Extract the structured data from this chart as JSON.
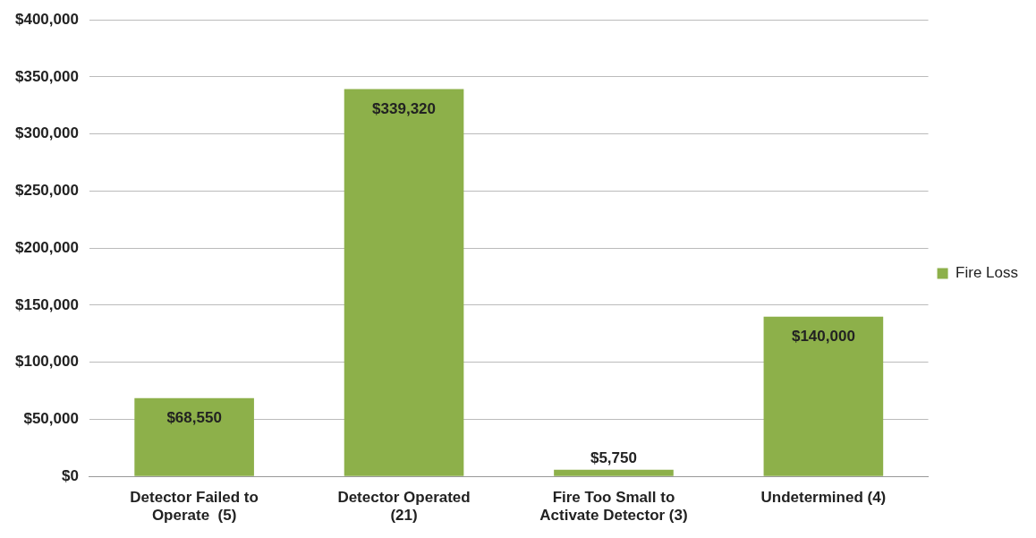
{
  "chart_data": {
    "type": "bar",
    "categories": [
      "Detector Failed to Operate  (5)",
      "Detector Operated (21)",
      "Fire Too Small to Activate Detector (3)",
      "Undetermined (4)"
    ],
    "series": [
      {
        "name": "Fire Loss",
        "color": "#8db04a",
        "values": [
          68550,
          339320,
          5750,
          140000
        ],
        "value_labels": [
          "$68,550",
          "$339,320",
          "$5,750",
          "$140,000"
        ]
      }
    ],
    "ylim": [
      0,
      400000
    ],
    "yticks": [
      {
        "value": 0,
        "label": "$0"
      },
      {
        "value": 50000,
        "label": "$50,000"
      },
      {
        "value": 100000,
        "label": "$100,000"
      },
      {
        "value": 150000,
        "label": "$150,000"
      },
      {
        "value": 200000,
        "label": "$200,000"
      },
      {
        "value": 250000,
        "label": "$250,000"
      },
      {
        "value": 300000,
        "label": "$300,000"
      },
      {
        "value": 350000,
        "label": "$350,000"
      },
      {
        "value": 400000,
        "label": "$400,000"
      }
    ],
    "grid": "y",
    "legend": "right"
  }
}
